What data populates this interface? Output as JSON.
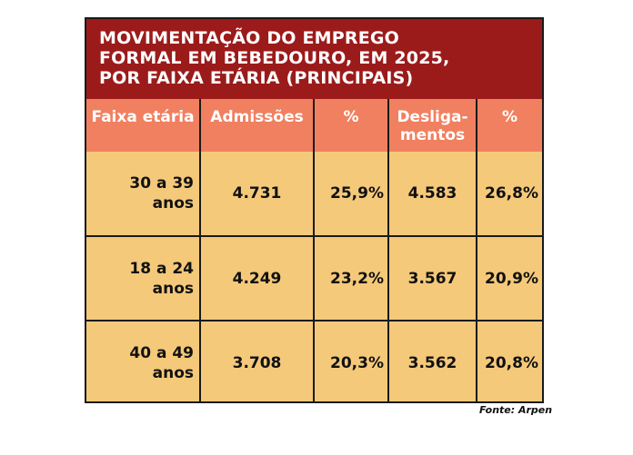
{
  "chart_data": {
    "type": "table",
    "title": "MOVIMENTAÇÃO DO EMPREGO FORMAL EM BEBEDOURO, EM 2025, POR FAIXA ETÁRIA (PRINCIPAIS)",
    "title_lines": [
      "MOVIMENTAÇÃO DO EMPREGO",
      "FORMAL EM BEBEDOURO, EM 2025,",
      "POR FAIXA ETÁRIA (PRINCIPAIS)"
    ],
    "columns": [
      "Faixa etária",
      "Admissões",
      "%",
      "Desliga- mentos",
      "%"
    ],
    "desligamentos_lines": [
      "Desliga-",
      "mentos"
    ],
    "rows": [
      {
        "faixa_lines": [
          "30 a 39",
          "anos"
        ],
        "admissoes": "4.731",
        "admissoes_pct": "25,9%",
        "desligamentos": "4.583",
        "desligamentos_pct": "26,8%"
      },
      {
        "faixa_lines": [
          "18 a 24",
          "anos"
        ],
        "admissoes": "4.249",
        "admissoes_pct": "23,2%",
        "desligamentos": "3.567",
        "desligamentos_pct": "20,9%"
      },
      {
        "faixa_lines": [
          "40 a 49",
          "anos"
        ],
        "admissoes": "3.708",
        "admissoes_pct": "20,3%",
        "desligamentos": "3.562",
        "desligamentos_pct": "20,8%"
      }
    ],
    "source": "Fonte: Arpen",
    "colors": {
      "title_band": "#9b1b1b",
      "header_row": "#f08060",
      "body": "#f5c97a"
    }
  }
}
